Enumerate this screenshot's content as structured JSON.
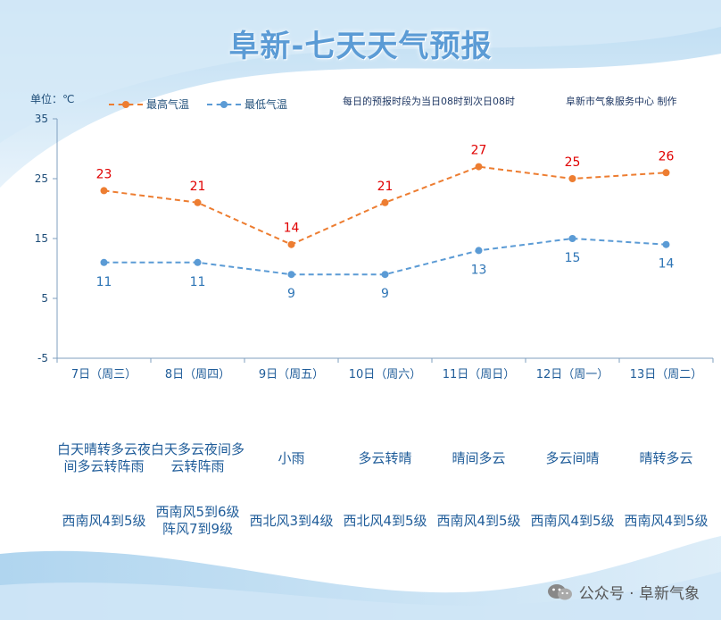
{
  "title": "阜新-七天天气预报",
  "unit_label": "单位：℃",
  "forecast_note": "每日的预报时段为当日08时到次日08时",
  "publisher": "阜新市气象服务中心 制作",
  "watermark": "公众号 · 阜新气象",
  "colors": {
    "high": "#ed7d31",
    "low": "#5b9bd5",
    "high_label": "#e00000",
    "low_label": "#2e75b6",
    "axis": "#7f9fbf",
    "title": "#5b9bd5"
  },
  "chart_data": {
    "type": "line",
    "categories": [
      "7日（周三）",
      "8日（周四）",
      "9日（周五）",
      "10日（周六）",
      "11日（周日）",
      "12日（周一）",
      "13日（周二）"
    ],
    "series": [
      {
        "name": "最高气温",
        "values": [
          23,
          21,
          14,
          21,
          27,
          25,
          26
        ]
      },
      {
        "name": "最低气温",
        "values": [
          11,
          11,
          9,
          9,
          13,
          15,
          14
        ]
      }
    ],
    "yticks": [
      35,
      25,
      15,
      5,
      -5
    ],
    "ylim": [
      -5,
      35
    ],
    "legend": "top-left",
    "grid": false
  },
  "weather": [
    "白天晴转多云夜间多云转阵雨",
    "白天多云夜间多云转阵雨",
    "小雨",
    "多云转晴",
    "晴间多云",
    "多云间晴",
    "晴转多云"
  ],
  "wind": [
    "西南风4到5级",
    "西南风5到6级阵风7到9级",
    "西北风3到4级",
    "西北风4到5级",
    "西南风4到5级",
    "西南风4到5级",
    "西南风4到5级"
  ]
}
